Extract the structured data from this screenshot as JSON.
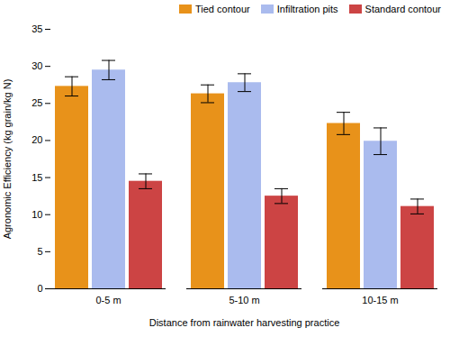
{
  "chart_data": {
    "type": "bar",
    "xlabel": "Distance from rainwater harvesting practice",
    "ylabel": "Agronomic Efficiency (kg grain/kg N)",
    "categories": [
      "0-5 m",
      "5-10 m",
      "10-15 m"
    ],
    "series": [
      {
        "name": "Tied contour",
        "color": "#E8921A",
        "values": [
          27.3,
          26.3,
          22.3
        ],
        "errors": [
          1.3,
          1.2,
          1.5
        ]
      },
      {
        "name": "Infiltration pits",
        "color": "#AABBEE",
        "values": [
          29.5,
          27.8,
          19.9
        ],
        "errors": [
          1.3,
          1.2,
          1.8
        ]
      },
      {
        "name": "Standard contour",
        "color": "#CC4444",
        "values": [
          14.5,
          12.5,
          11.1
        ],
        "errors": [
          1.0,
          1.0,
          1.0
        ]
      }
    ],
    "ylim": [
      0,
      35
    ],
    "yticks": [
      0,
      5,
      10,
      15,
      20,
      25,
      30,
      35
    ],
    "grid": false,
    "legend": "upper right"
  }
}
